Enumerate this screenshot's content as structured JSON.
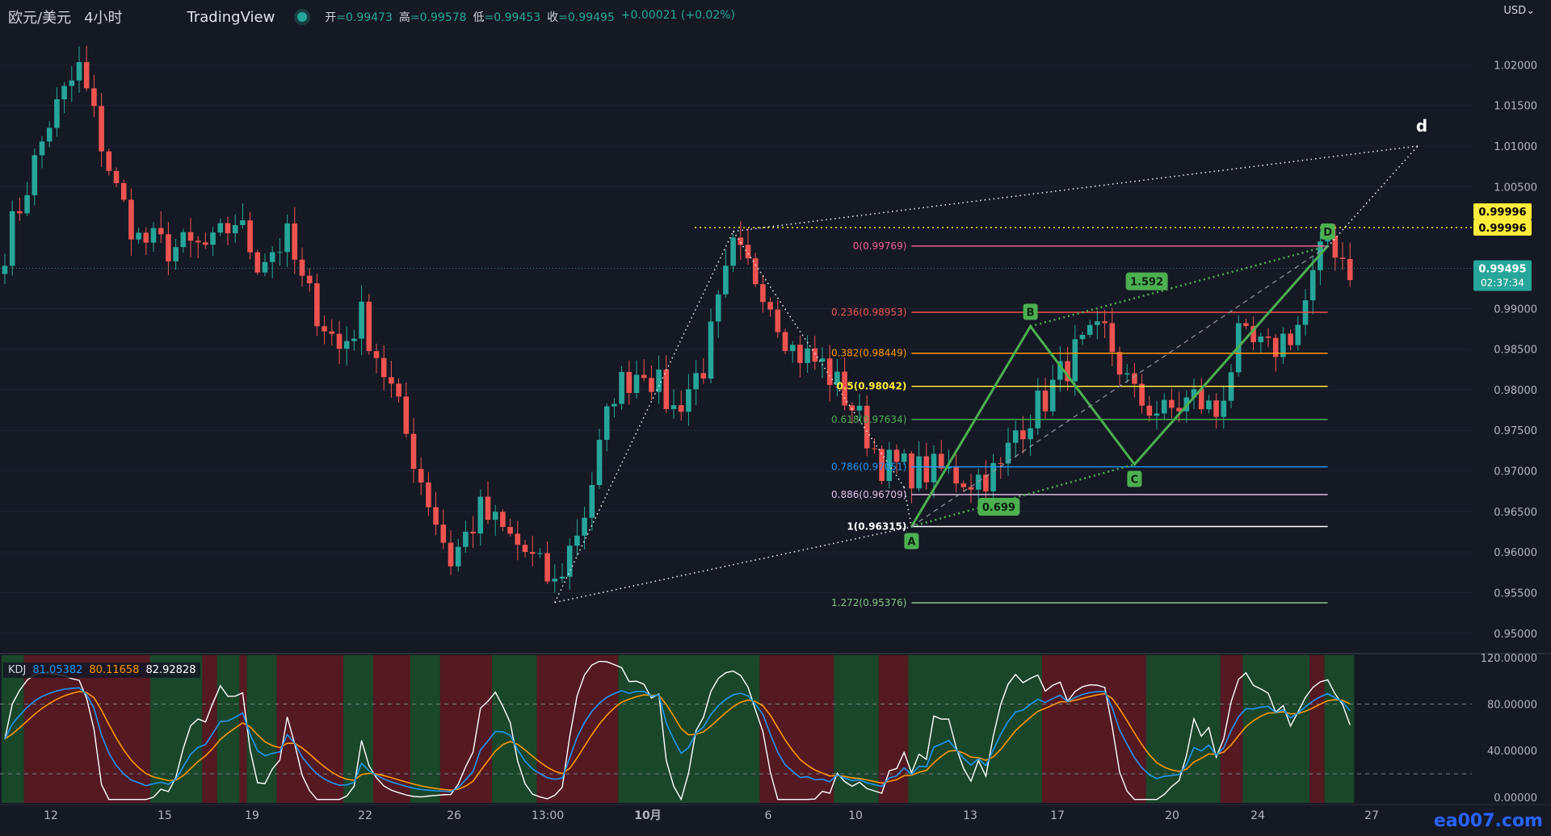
{
  "header": {
    "symbol": "欧元/美元",
    "timeframe": "4小时",
    "source": "TradingView",
    "o_label": "开",
    "o": "=0.99473",
    "h_label": "高",
    "h": "=0.99578",
    "l_label": "低",
    "l": "=0.99453",
    "c_label": "收",
    "c": "=0.99495",
    "change": "+0.00021 (+0.02%)"
  },
  "currency": "USD",
  "watermark": "ea007.com",
  "colors": {
    "background": "#151924",
    "up": "#26a69a",
    "down": "#ef5350",
    "pattern": "#4caf50",
    "k": "#2196f3",
    "d": "#ff9800",
    "j": "#ffffff",
    "bg_green": "#1b4d2b",
    "bg_red": "#5c1a22"
  },
  "chart_data": {
    "type": "candlestick",
    "symbol": "EUR/USD",
    "timeframe": "4H",
    "ylim": [
      0.948,
      1.025
    ],
    "y_ticks": [
      "1.02000",
      "1.01500",
      "1.01000",
      "1.00500",
      "0.99000",
      "0.98500",
      "0.98000",
      "0.97500",
      "0.97000",
      "0.96500",
      "0.96000",
      "0.95500",
      "0.95000"
    ],
    "x_ticks": [
      "12",
      "15",
      "19",
      "22",
      "26",
      "13:00",
      "10月",
      "6",
      "10",
      "13",
      "17",
      "20",
      "24",
      "27"
    ],
    "price_tags": [
      {
        "value": "0.99996",
        "color": "#ffeb3b",
        "text_color": "#000000"
      },
      {
        "value": "0.99996",
        "color": "#ffeb3b",
        "text_color": "#000000"
      },
      {
        "value": "0.99495",
        "sub": "02:37:34",
        "color": "#26a69a",
        "text_color": "#ffffff"
      }
    ],
    "price_path": [
      [
        0,
        0.9975
      ],
      [
        6,
        1.013
      ],
      [
        10,
        1.0195
      ],
      [
        15,
        1.0045
      ],
      [
        18,
        0.9985
      ],
      [
        22,
        0.9975
      ],
      [
        28,
        0.9975
      ],
      [
        31,
        1.001
      ],
      [
        34,
        0.996
      ],
      [
        38,
        0.9985
      ],
      [
        40,
        0.993
      ],
      [
        45,
        0.985
      ],
      [
        48,
        0.989
      ],
      [
        52,
        0.98
      ],
      [
        56,
        0.969
      ],
      [
        60,
        0.959
      ],
      [
        64,
        0.965
      ],
      [
        70,
        0.96
      ],
      [
        74,
        0.9558
      ],
      [
        78,
        0.965
      ],
      [
        82,
        0.98
      ],
      [
        86,
        0.983
      ],
      [
        90,
        0.9775
      ],
      [
        94,
        0.983
      ],
      [
        98,
        0.997
      ],
      [
        102,
        0.993
      ],
      [
        106,
        0.985
      ],
      [
        110,
        0.983
      ],
      [
        114,
        0.978
      ],
      [
        118,
        0.971
      ],
      [
        122,
        0.97
      ],
      [
        126,
        0.97
      ],
      [
        130,
        0.969
      ],
      [
        134,
        0.97
      ],
      [
        136,
        0.975
      ],
      [
        140,
        0.979
      ],
      [
        144,
        0.9845
      ],
      [
        148,
        0.987
      ],
      [
        152,
        0.979
      ],
      [
        156,
        0.977
      ],
      [
        160,
        0.979
      ],
      [
        163,
        0.977
      ],
      [
        166,
        0.986
      ],
      [
        170,
        0.9845
      ],
      [
        174,
        0.988
      ],
      [
        178,
        0.999
      ],
      [
        181,
        0.995
      ]
    ],
    "fib_levels": [
      {
        "label": "0(0.99769)",
        "value": 0.99769,
        "color": "#f06292"
      },
      {
        "label": "0.236(0.98953)",
        "value": 0.98953,
        "color": "#ef5350"
      },
      {
        "label": "0.382(0.98449)",
        "value": 0.98449,
        "color": "#ff9800"
      },
      {
        "label": "0.5(0.98042)",
        "value": 0.98042,
        "color": "#ffeb3b"
      },
      {
        "label": "0.618(0.97634)",
        "value": 0.97634,
        "color": "#4caf50"
      },
      {
        "label": "0.786(0.97051)",
        "value": 0.97051,
        "color": "#2196f3"
      },
      {
        "label": "0.886(0.96709)",
        "value": 0.96709,
        "color": "#e1bee7"
      },
      {
        "label": "1(0.96315)",
        "value": 0.96315,
        "color": "#ffffff"
      },
      {
        "label": "1.272(0.95376)",
        "value": 0.95376,
        "color": "#81c784"
      }
    ],
    "harmonic_points": [
      {
        "label": "A",
        "value": 0.96315
      },
      {
        "label": "B",
        "value": 0.9878
      },
      {
        "label": "C",
        "value": 0.9708
      },
      {
        "label": "D",
        "value": 0.99769
      }
    ],
    "harmonic_ratios": [
      "1.592",
      "0.699"
    ],
    "big_pattern_label": "d",
    "big_pattern_target": 1.01,
    "resistance_line": 0.99996,
    "kdj": {
      "label": "KDJ",
      "k": "81.05382",
      "d": "80.11658",
      "j": "82.92828",
      "ylim": [
        -5,
        122
      ],
      "y_ticks": [
        "120.00000",
        "80.00000",
        "40.00000",
        "0.00000"
      ],
      "levels": [
        80,
        20
      ]
    }
  }
}
